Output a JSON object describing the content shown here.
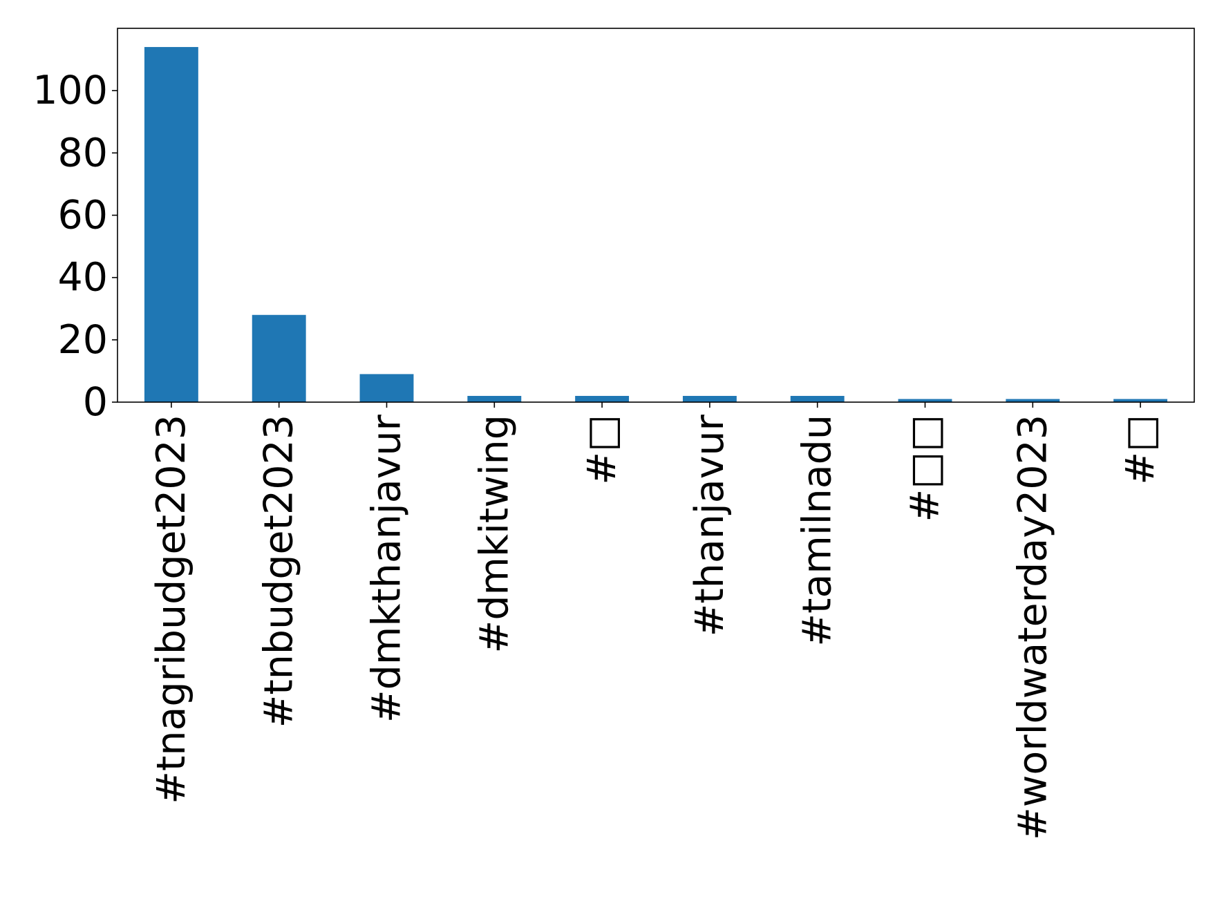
{
  "chart_data": {
    "type": "bar",
    "title": "",
    "xlabel": "",
    "ylabel": "",
    "categories": [
      "#tnagribudget2023",
      "#tnbudget2023",
      "#dmkthanjavur",
      "#dmkitwing",
      "#□",
      "#thanjavur",
      "#tamilnadu",
      "#□□",
      "#worldwaterday2023",
      "#□"
    ],
    "values": [
      114,
      28,
      9,
      2,
      2,
      2,
      2,
      1,
      1,
      1
    ],
    "ylim": [
      0,
      120
    ],
    "yticks": [
      0,
      20,
      40,
      60,
      80,
      100
    ],
    "grid": false,
    "legend": "none",
    "bar_color": "#1f77b4"
  }
}
